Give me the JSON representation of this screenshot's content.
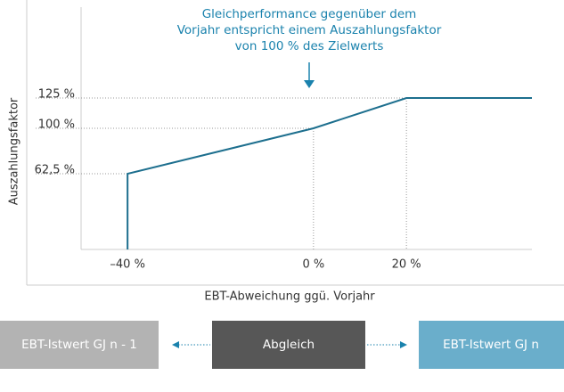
{
  "chart_data": {
    "type": "line",
    "annotation": [
      "Gleichperformance gegenüber dem",
      "Vorjahr entspricht einem Auszahlungsfaktor",
      "von 100 % des Zielwerts"
    ],
    "x_label": "EBT-Abweichung ggü. Vorjahr",
    "y_label": "Auszahlungsfaktor",
    "x": [
      -40,
      -40,
      0,
      20,
      47
    ],
    "values": [
      0,
      62.5,
      100,
      125,
      125
    ],
    "color": "#1d6f8e",
    "xlim": [
      -50,
      47
    ],
    "ylim": [
      0,
      200
    ],
    "xticks": [
      {
        "value": -40,
        "label": "–40 %"
      },
      {
        "value": 0,
        "label": "0 %"
      },
      {
        "value": 20,
        "label": "20 %"
      }
    ],
    "yticks": [
      {
        "value": 62.5,
        "label": "62,5 %"
      },
      {
        "value": 100,
        "label": "100 %"
      },
      {
        "value": 125,
        "label": "125 %"
      }
    ]
  },
  "flow": {
    "boxes": [
      "EBT-Istwert GJ n - 1",
      "Abgleich",
      "EBT-Istwert GJ n"
    ]
  }
}
